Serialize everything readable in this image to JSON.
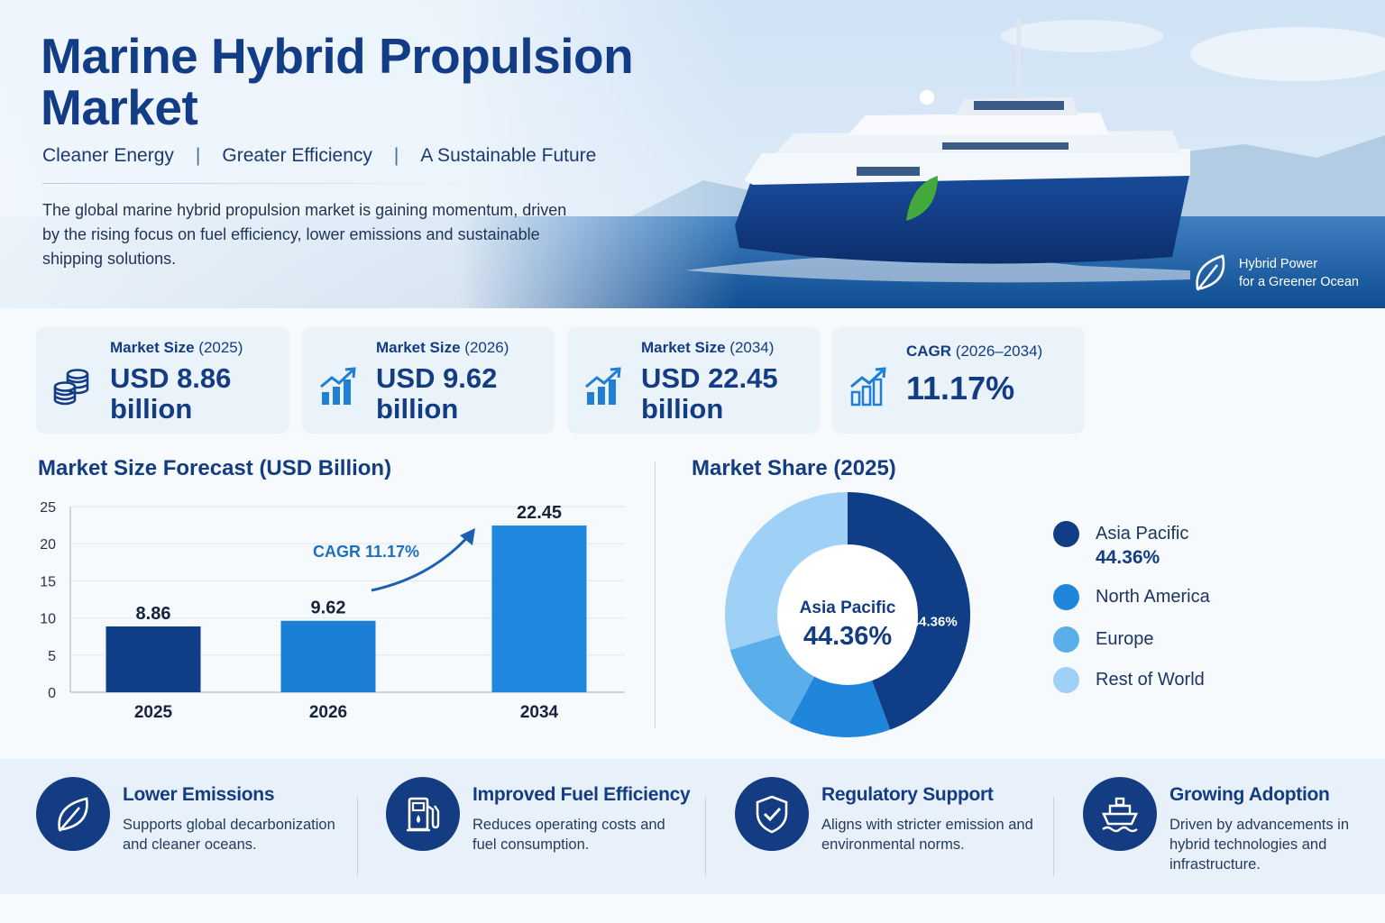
{
  "hero": {
    "title": "Marine Hybrid Propulsion Market",
    "taglines": [
      "Cleaner Energy",
      "Greater Efficiency",
      "A Sustainable Future"
    ],
    "separator": "|",
    "intro": "The global marine hybrid propulsion market is gaining momentum, driven by the rising focus on fuel efficiency, lower emissions and sustainable shipping solutions.",
    "badge_line1": "Hybrid Power",
    "badge_line2": "for a Greener Ocean"
  },
  "kpis": [
    {
      "label": "Market Size",
      "year": "(2025)",
      "value": "USD 8.86 billion",
      "icon": "coins-icon"
    },
    {
      "label": "Market Size",
      "year": "(2026)",
      "value": "USD 9.62 billion",
      "icon": "growth-chart-icon"
    },
    {
      "label": "Market Size",
      "year": "(2034)",
      "value": "USD 22.45 billion",
      "icon": "growth-chart-icon"
    },
    {
      "label": "CAGR",
      "year": "(2026–2034)",
      "value": "11.17%",
      "icon": "growth-chart-icon"
    }
  ],
  "chart_data": [
    {
      "type": "bar",
      "title": "Market Size Forecast (USD Billion)",
      "categories": [
        "2025",
        "2026",
        "2034"
      ],
      "values": [
        8.86,
        9.62,
        22.45
      ],
      "data_labels": [
        "8.86",
        "9.62",
        "22.45"
      ],
      "ylim": [
        0,
        25
      ],
      "yticks": [
        0,
        5,
        10,
        15,
        20,
        25
      ],
      "grid": true,
      "annotation": "CAGR 11.17%",
      "colors": [
        "#0f3e87",
        "#1b7fd6",
        "#1e88df"
      ]
    },
    {
      "type": "pie",
      "title": "Market Share (2025)",
      "labels": [
        "Asia Pacific",
        "North America",
        "Europe",
        "Rest of World"
      ],
      "values": [
        44.36,
        13.5,
        12.5,
        29.64
      ],
      "colors": [
        "#0f3e87",
        "#1f86dc",
        "#5aaee9",
        "#9fd0f5"
      ],
      "center_label": "Asia Pacific",
      "center_value": "44.36%",
      "slice_label": "44.36%",
      "legend_position": "right",
      "legend_value": "44.36%"
    }
  ],
  "features": [
    {
      "title": "Lower Emissions",
      "desc": "Supports global decarbonization and cleaner oceans.",
      "icon": "leaf-icon"
    },
    {
      "title": "Improved Fuel Efficiency",
      "desc": "Reduces operating costs and fuel consumption.",
      "icon": "fuel-pump-icon"
    },
    {
      "title": "Regulatory Support",
      "desc": "Aligns with stricter emission and environmental norms.",
      "icon": "shield-check-icon"
    },
    {
      "title": "Growing Adoption",
      "desc": "Driven by advancements in hybrid technologies and infrastructure.",
      "icon": "ship-icon"
    }
  ]
}
